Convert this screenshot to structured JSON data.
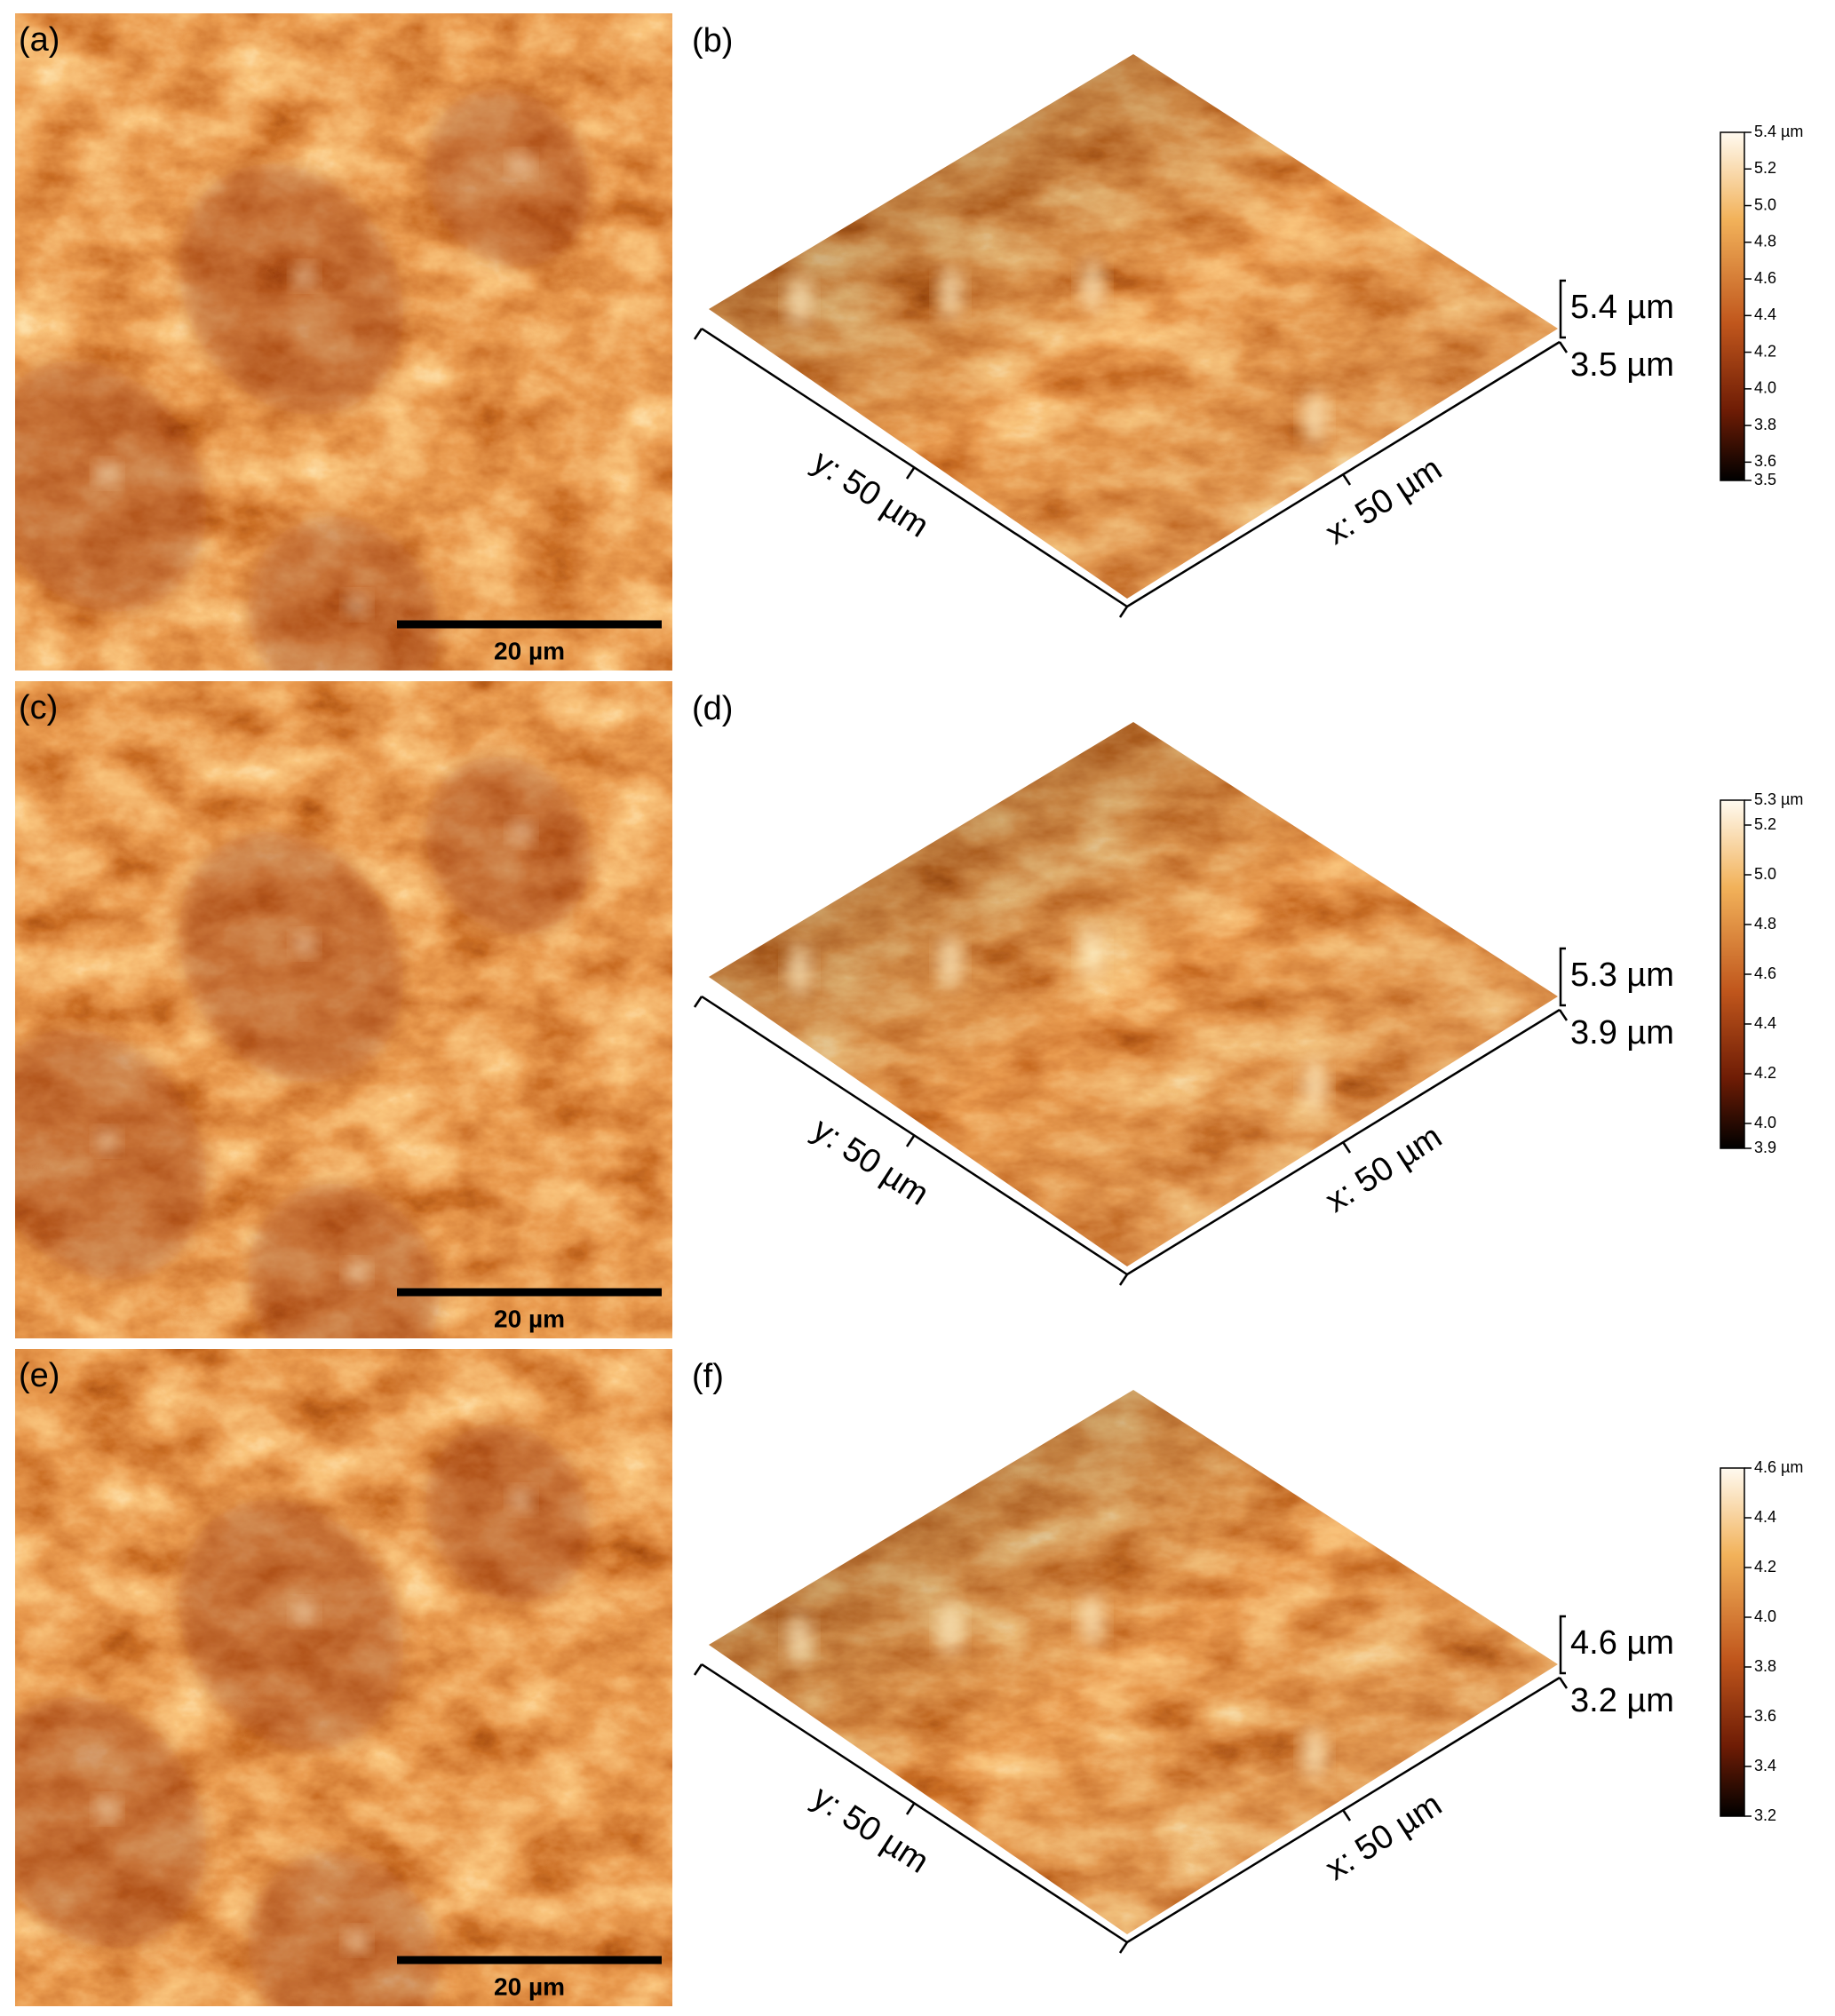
{
  "panels": [
    {
      "label": "(a)",
      "scale_bar": "20 µm"
    },
    {
      "label": "(b)",
      "y_axis": "y: 50 µm",
      "x_axis": "x: 50 µm",
      "z_max": "5.4 µm",
      "z_min": "3.5 µm",
      "colorbar": [
        {
          "value": 5.4,
          "label": "5.4 µm"
        },
        5.2,
        {
          "value": 5.0,
          "label": "5.0"
        },
        4.8,
        4.6,
        4.4,
        4.2,
        {
          "value": 4.0,
          "label": "4.0"
        },
        3.8,
        3.6,
        3.5
      ]
    },
    {
      "label": "(c)",
      "scale_bar": "20 µm"
    },
    {
      "label": "(d)",
      "y_axis": "y: 50 µm",
      "x_axis": "x: 50 µm",
      "z_max": "5.3 µm",
      "z_min": "3.9 µm",
      "colorbar": [
        {
          "value": 5.3,
          "label": "5.3 µm"
        },
        5.2,
        {
          "value": 5.0,
          "label": "5.0"
        },
        4.8,
        4.6,
        4.4,
        4.2,
        {
          "value": 4.0,
          "label": "4.0"
        },
        3.9
      ]
    },
    {
      "label": "(e)",
      "scale_bar": "20 µm"
    },
    {
      "label": "(f)",
      "y_axis": "y: 50 µm",
      "x_axis": "x: 50 µm",
      "z_max": "4.6 µm",
      "z_min": "3.2 µm",
      "colorbar": [
        {
          "value": 4.6,
          "label": "4.6 µm"
        },
        4.4,
        4.2,
        {
          "value": 4.0,
          "label": "4.0"
        },
        3.8,
        3.6,
        3.4,
        3.2
      ]
    }
  ]
}
